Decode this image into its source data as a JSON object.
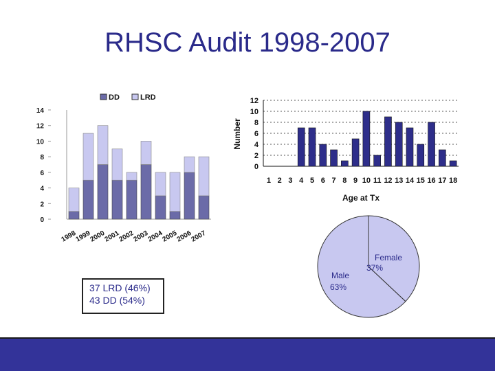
{
  "slide": {
    "title": "RHSC Audit 1998-2007"
  },
  "summary": {
    "lrd": "37 LRD (46%)",
    "dd": "43 DD (54%)"
  },
  "colors": {
    "dd": "#6b6ba8",
    "lrd": "#c8c8f0",
    "age_bar": "#2e2e8a",
    "title": "#2a2a8a",
    "footer": "#333399"
  },
  "chart_data": [
    {
      "type": "bar",
      "stacked": true,
      "categories": [
        "1998",
        "1999",
        "2000",
        "2001",
        "2002",
        "2003",
        "2004",
        "2005",
        "2006",
        "2007"
      ],
      "series": [
        {
          "name": "DD",
          "values": [
            1,
            5,
            7,
            5,
            5,
            7,
            3,
            1,
            6,
            3
          ]
        },
        {
          "name": "LRD",
          "values": [
            3,
            6,
            5,
            4,
            1,
            3,
            3,
            5,
            2,
            5
          ]
        }
      ],
      "ylim": [
        0,
        14
      ],
      "yticks": [
        0,
        2,
        4,
        6,
        8,
        10,
        12,
        14
      ],
      "legend": "top"
    },
    {
      "type": "bar",
      "categories": [
        "1",
        "2",
        "3",
        "4",
        "5",
        "6",
        "7",
        "8",
        "9",
        "10",
        "11",
        "12",
        "13",
        "14",
        "15",
        "16",
        "17",
        "18"
      ],
      "values": [
        0,
        0,
        0,
        7,
        7,
        4,
        3,
        1,
        5,
        10,
        2,
        9,
        8,
        7,
        4,
        8,
        3,
        1
      ],
      "xlabel": "Age at Tx",
      "ylabel": "Number",
      "ylim": [
        0,
        12
      ],
      "yticks": [
        0,
        2,
        4,
        6,
        8,
        10,
        12
      ],
      "grid": true
    },
    {
      "type": "pie",
      "categories": [
        "Female",
        "Male"
      ],
      "values": [
        37,
        63
      ],
      "labels": [
        "Female 37%",
        "Male 63%"
      ],
      "label_text": {
        "female": "Female",
        "female_pct": "37%",
        "male": "Male",
        "male_pct": "63%"
      }
    }
  ]
}
